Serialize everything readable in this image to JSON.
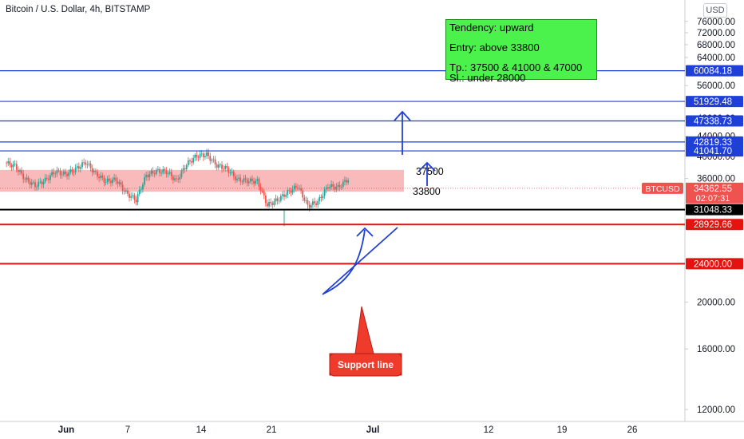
{
  "header": {
    "title": "Bitcoin / U.S. Dollar, 4h, BITSTAMP",
    "currency": "USD"
  },
  "price_axis": {
    "ticks": [
      "76000.00",
      "72000.00",
      "68000.00",
      "64000.00",
      "56000.00",
      "48000.00",
      "44000.00",
      "40000.00",
      "36000.00",
      "20000.00",
      "16000.00",
      "12000.00"
    ]
  },
  "time_axis": {
    "ticks": [
      {
        "label": "Jun",
        "bold": true
      },
      {
        "label": "7",
        "bold": false
      },
      {
        "label": "14",
        "bold": false
      },
      {
        "label": "21",
        "bold": false
      },
      {
        "label": "Jul",
        "bold": true
      },
      {
        "label": "12",
        "bold": false
      },
      {
        "label": "19",
        "bold": false
      },
      {
        "label": "26",
        "bold": false
      }
    ]
  },
  "levels": [
    {
      "price": "60084.18",
      "color": "#1e3fd8",
      "tag": "60084.18"
    },
    {
      "price": "51929.48",
      "color": "#1e3fd8",
      "tag": "51929.48"
    },
    {
      "price": "47338.73",
      "color": "#1e3fd8",
      "tag": "47338.73"
    },
    {
      "price": "42819.33",
      "color": "#1e3fd8",
      "tag": "42819.33"
    },
    {
      "price": "41041.70",
      "color": "#1e3fd8",
      "tag": "41041.70"
    },
    {
      "price": "31048.33",
      "color": "#000000",
      "tag": "31048.33"
    },
    {
      "price": "28929.66",
      "color": "#e3140f",
      "tag": "28929.66"
    },
    {
      "price": "24000.00",
      "color": "#e3140f",
      "tag": "24000.00"
    }
  ],
  "zone": {
    "low": 33800,
    "high": 37500,
    "label_high": "37500",
    "label_low": "33800",
    "color": "#f5a3a3"
  },
  "current_price": {
    "symbol": "BTCUSD",
    "price": "34362.55",
    "countdown": "02:07:31",
    "color": "#ef5350"
  },
  "note": {
    "line1": "Tendency: upward",
    "line2": "Entry: above 33800",
    "line3": "Tp.: 37500 & 41000 & 47000",
    "line4": "Sl.: under 28000",
    "bg": "#4cf24c"
  },
  "callout": {
    "text": "Support line",
    "bg": "#ef3b2c"
  },
  "chart_data": {
    "type": "candlestick",
    "title": "Bitcoin / U.S. Dollar, 4h, BITSTAMP",
    "ylim": [
      10000,
      78000
    ],
    "y_scale": "log",
    "series": [
      {
        "close_path": [
          {
            "x": "2021-05-26",
            "y": 38800
          },
          {
            "x": "2021-05-27",
            "y": 38200
          },
          {
            "x": "2021-05-28",
            "y": 35900
          },
          {
            "x": "2021-05-29",
            "y": 34800
          },
          {
            "x": "2021-05-30",
            "y": 35700
          },
          {
            "x": "2021-05-31",
            "y": 37200
          },
          {
            "x": "2021-06-01",
            "y": 36700
          },
          {
            "x": "2021-06-02",
            "y": 37600
          },
          {
            "x": "2021-06-03",
            "y": 38900
          },
          {
            "x": "2021-06-04",
            "y": 36800
          },
          {
            "x": "2021-06-05",
            "y": 35500
          },
          {
            "x": "2021-06-06",
            "y": 35800
          },
          {
            "x": "2021-06-07",
            "y": 33600
          },
          {
            "x": "2021-06-08",
            "y": 32500
          },
          {
            "x": "2021-06-09",
            "y": 36500
          },
          {
            "x": "2021-06-10",
            "y": 37300
          },
          {
            "x": "2021-06-11",
            "y": 37200
          },
          {
            "x": "2021-06-12",
            "y": 35600
          },
          {
            "x": "2021-06-13",
            "y": 38500
          },
          {
            "x": "2021-06-14",
            "y": 40100
          },
          {
            "x": "2021-06-15",
            "y": 40300
          },
          {
            "x": "2021-06-16",
            "y": 38300
          },
          {
            "x": "2021-06-17",
            "y": 37700
          },
          {
            "x": "2021-06-18",
            "y": 35800
          },
          {
            "x": "2021-06-19",
            "y": 35600
          },
          {
            "x": "2021-06-20",
            "y": 35500
          },
          {
            "x": "2021-06-21",
            "y": 31700
          },
          {
            "x": "2021-06-22",
            "y": 32500
          },
          {
            "x": "2021-06-23",
            "y": 33700
          },
          {
            "x": "2021-06-24",
            "y": 34700
          },
          {
            "x": "2021-06-25",
            "y": 31600
          },
          {
            "x": "2021-06-26",
            "y": 32200
          },
          {
            "x": "2021-06-27",
            "y": 34700
          },
          {
            "x": "2021-06-28",
            "y": 34500
          },
          {
            "x": "2021-06-29",
            "y": 35900
          }
        ]
      }
    ],
    "annotations": [
      "37500",
      "33800",
      "Support line"
    ]
  }
}
